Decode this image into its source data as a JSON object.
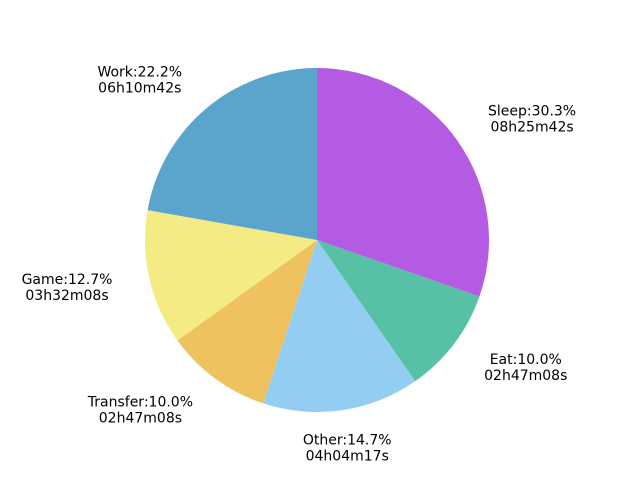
{
  "chart_data": {
    "type": "pie",
    "title": "",
    "start_angle_deg": 90,
    "direction": "clockwise",
    "slices": [
      {
        "label": "Sleep",
        "percent_text": "30.3%",
        "duration": "08h25m42s",
        "value": 30.3,
        "color": "#b55ae2"
      },
      {
        "label": "Eat",
        "percent_text": "10.0%",
        "duration": "02h47m08s",
        "value": 10.0,
        "color": "#58c0a5"
      },
      {
        "label": "Other",
        "percent_text": "14.7%",
        "duration": "04h04m17s",
        "value": 14.7,
        "color": "#93cdf1"
      },
      {
        "label": "Transfer",
        "percent_text": "10.0%",
        "duration": "02h47m08s",
        "value": 10.0,
        "color": "#edc25f"
      },
      {
        "label": "Game",
        "percent_text": "12.7%",
        "duration": "03h32m08s",
        "value": 12.7,
        "color": "#f4eb84"
      },
      {
        "label": "Work",
        "percent_text": "22.2%",
        "duration": "06h10m42s",
        "value": 22.2,
        "color": "#5ba4cc"
      }
    ]
  }
}
